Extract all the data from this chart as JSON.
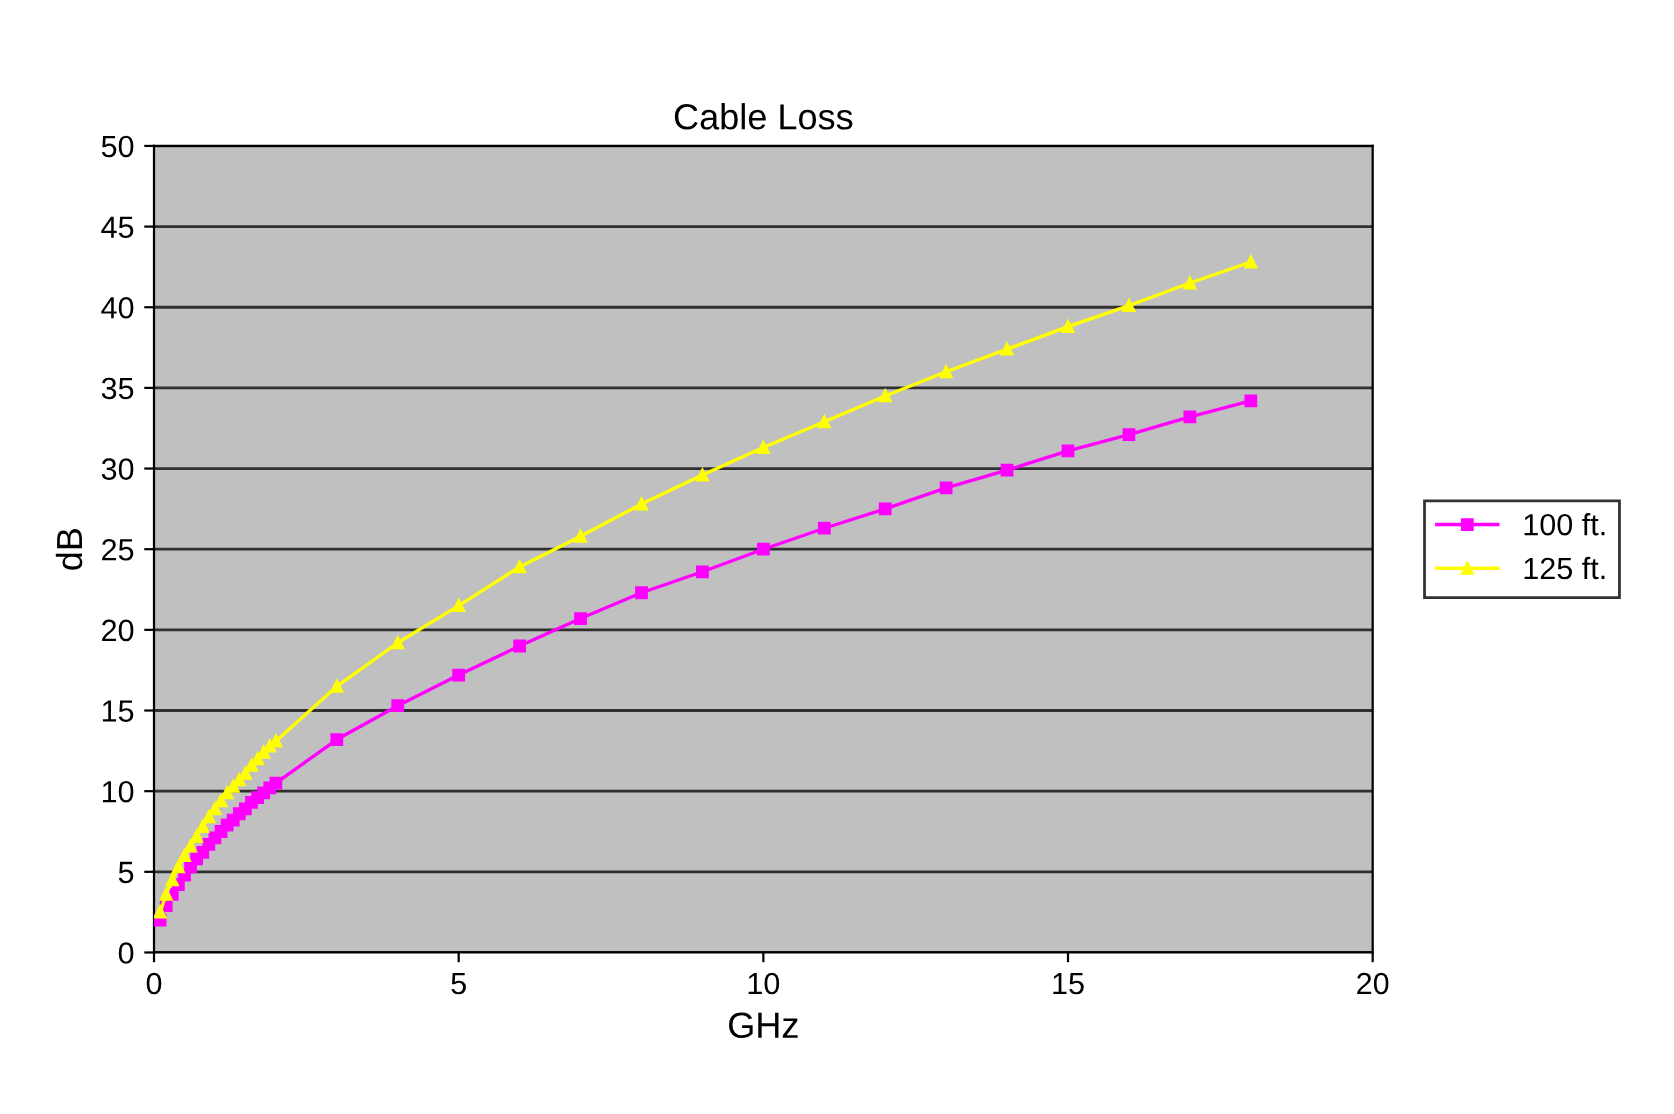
{
  "chart_data": {
    "type": "line",
    "title": "Cable Loss",
    "xlabel": "GHz",
    "ylabel": "dB",
    "xlim": [
      0,
      20
    ],
    "xticks": [
      0,
      5,
      10,
      15,
      20
    ],
    "ylim": [
      0,
      50
    ],
    "yticks": [
      0,
      5,
      10,
      15,
      20,
      25,
      30,
      35,
      40,
      45,
      50
    ],
    "grid": "y",
    "legend": "right",
    "series": [
      {
        "name": "100 ft.",
        "color": "#ff00ff",
        "marker": "square",
        "x": [
          0.1,
          0.2,
          0.3,
          0.4,
          0.5,
          0.6,
          0.7,
          0.8,
          0.9,
          1.0,
          1.1,
          1.2,
          1.3,
          1.4,
          1.5,
          1.6,
          1.7,
          1.8,
          1.9,
          2.0,
          3,
          4,
          5,
          6,
          7,
          8,
          9,
          10,
          11,
          12,
          13,
          14,
          15,
          16,
          17,
          18
        ],
        "values": [
          2.0,
          2.9,
          3.6,
          4.2,
          4.8,
          5.3,
          5.8,
          6.2,
          6.7,
          7.1,
          7.5,
          7.9,
          8.2,
          8.6,
          8.9,
          9.3,
          9.6,
          9.9,
          10.2,
          10.5,
          13.2,
          15.3,
          17.2,
          19.0,
          20.7,
          22.3,
          23.6,
          25.0,
          26.3,
          27.5,
          28.8,
          29.9,
          31.1,
          32.1,
          33.2,
          34.2
        ]
      },
      {
        "name": "125 ft.",
        "color": "#ffff00",
        "marker": "triangle",
        "x": [
          0.1,
          0.2,
          0.3,
          0.4,
          0.5,
          0.6,
          0.7,
          0.8,
          0.9,
          1.0,
          1.1,
          1.2,
          1.3,
          1.4,
          1.5,
          1.6,
          1.7,
          1.8,
          1.9,
          2.0,
          3,
          4,
          5,
          6,
          7,
          8,
          9,
          10,
          11,
          12,
          13,
          14,
          15,
          16,
          17,
          18
        ],
        "values": [
          2.5,
          3.6,
          4.5,
          5.3,
          6.0,
          6.6,
          7.2,
          7.8,
          8.4,
          8.9,
          9.4,
          9.9,
          10.3,
          10.7,
          11.1,
          11.6,
          12.0,
          12.4,
          12.8,
          13.1,
          16.5,
          19.2,
          21.5,
          23.9,
          25.8,
          27.8,
          29.6,
          31.3,
          32.9,
          34.5,
          36.0,
          37.4,
          38.8,
          40.1,
          41.5,
          42.8
        ]
      }
    ]
  }
}
